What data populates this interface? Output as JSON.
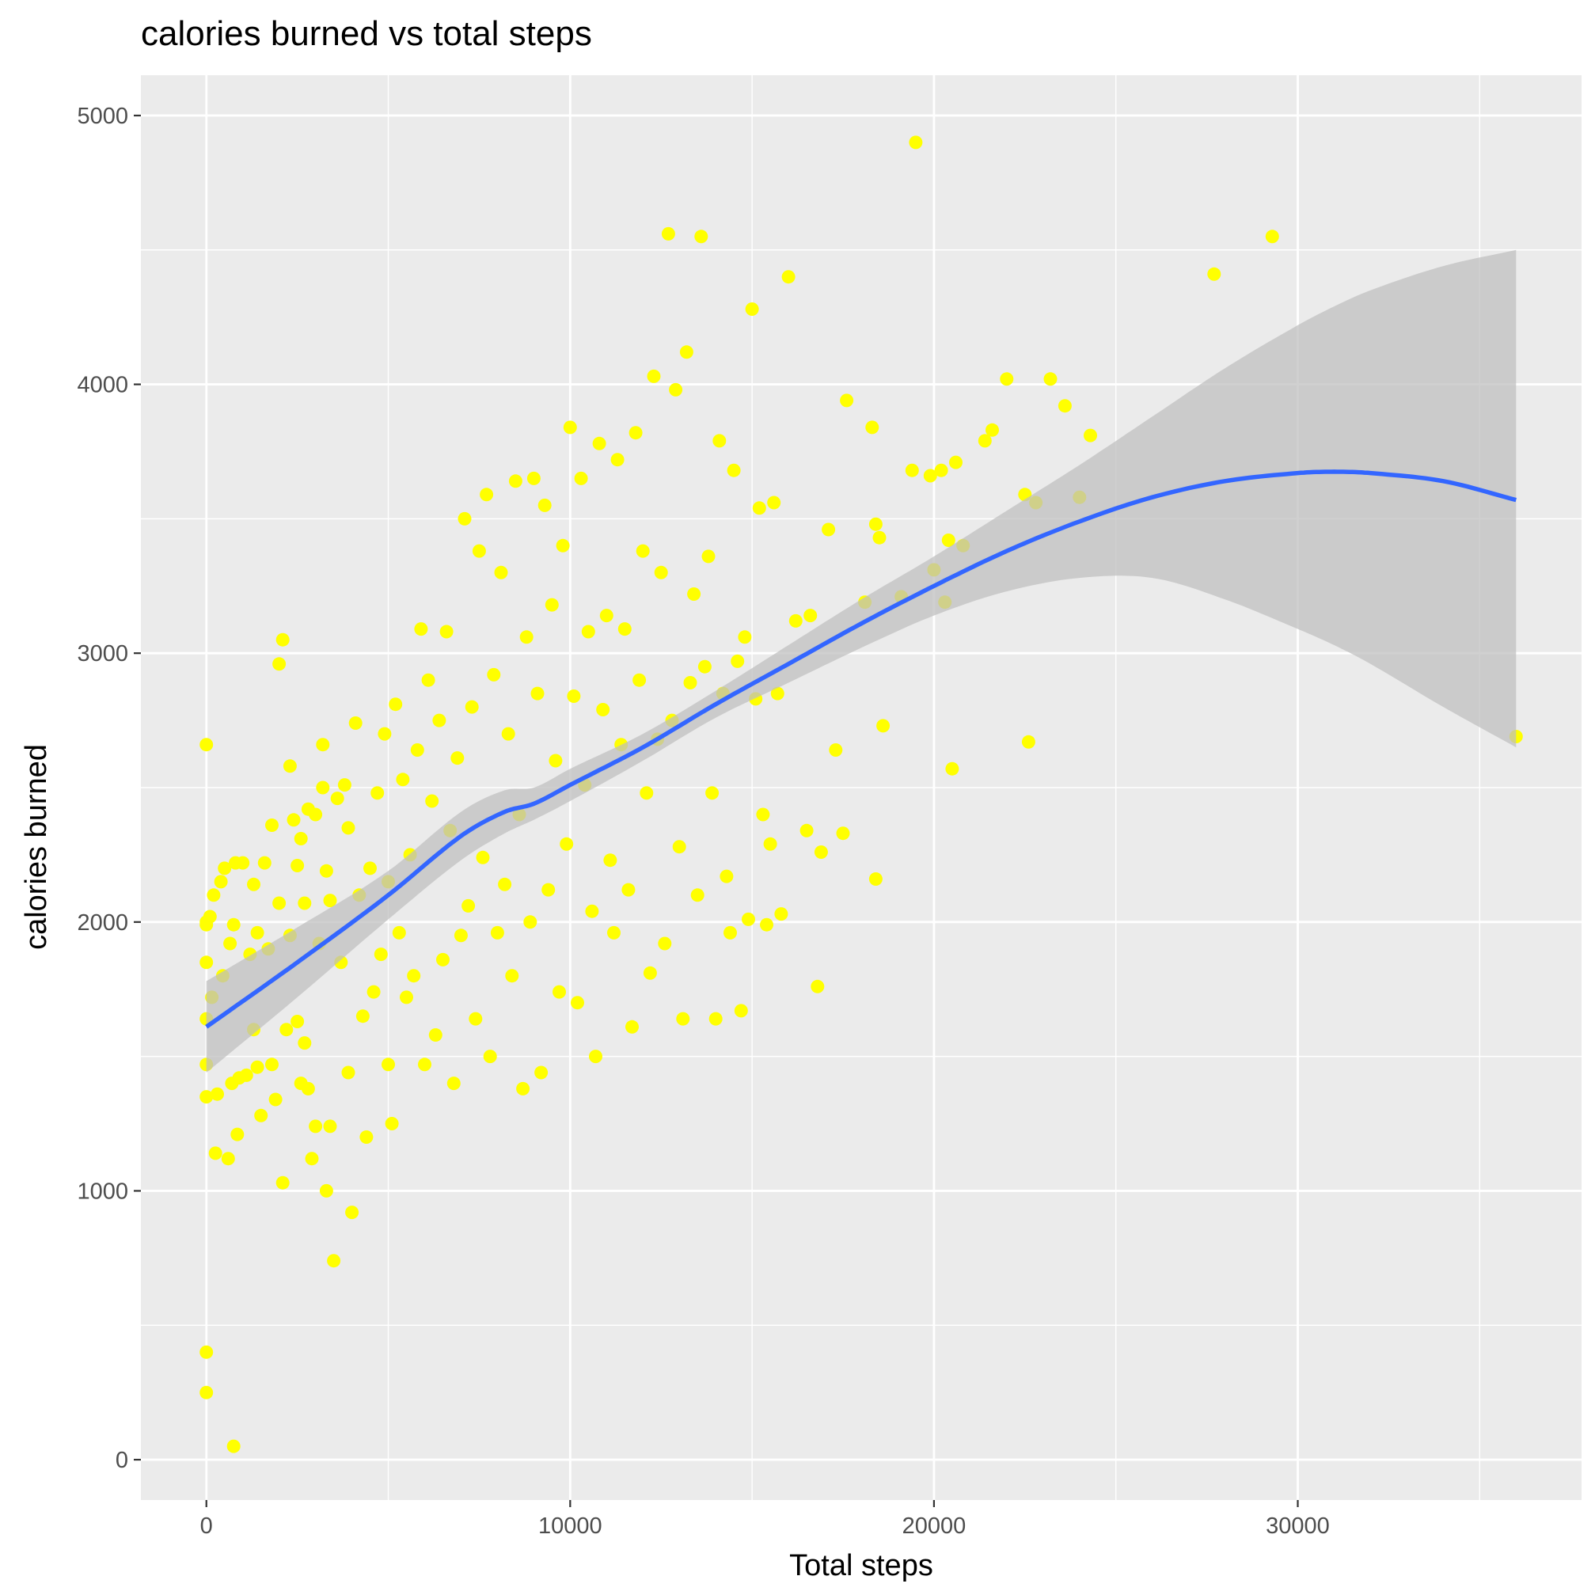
{
  "chart_data": {
    "type": "scatter",
    "title": "calories burned vs total steps",
    "xlabel": "Total steps",
    "ylabel": "calories burned",
    "xlim": [
      -1800,
      37800
    ],
    "ylim": [
      -150,
      5150
    ],
    "x_ticks": [
      0,
      10000,
      20000,
      30000
    ],
    "y_ticks": [
      0,
      1000,
      2000,
      3000,
      4000,
      5000
    ],
    "grid": true,
    "panel_color": "#ebebeb",
    "point_color": "#ffff00",
    "smooth_line_color": "#3366ff",
    "ribbon_color": "#bebebe",
    "points": [
      [
        0,
        2660
      ],
      [
        0,
        2000
      ],
      [
        0,
        1990
      ],
      [
        0,
        1850
      ],
      [
        0,
        1640
      ],
      [
        0,
        1470
      ],
      [
        0,
        1350
      ],
      [
        0,
        400
      ],
      [
        0,
        250
      ],
      [
        100,
        2020
      ],
      [
        150,
        1720
      ],
      [
        200,
        2100
      ],
      [
        250,
        1140
      ],
      [
        300,
        1360
      ],
      [
        400,
        2150
      ],
      [
        450,
        1800
      ],
      [
        500,
        2200
      ],
      [
        600,
        1120
      ],
      [
        650,
        1920
      ],
      [
        700,
        1400
      ],
      [
        750,
        1990
      ],
      [
        800,
        2220
      ],
      [
        750,
        50
      ],
      [
        850,
        1210
      ],
      [
        900,
        1420
      ],
      [
        1000,
        2220
      ],
      [
        1100,
        1430
      ],
      [
        1200,
        1880
      ],
      [
        1300,
        2140
      ],
      [
        1300,
        1600
      ],
      [
        1400,
        1960
      ],
      [
        1400,
        1460
      ],
      [
        1500,
        1280
      ],
      [
        1600,
        2220
      ],
      [
        1700,
        1900
      ],
      [
        1800,
        2360
      ],
      [
        1800,
        1470
      ],
      [
        1900,
        1340
      ],
      [
        2000,
        2070
      ],
      [
        2000,
        2960
      ],
      [
        2100,
        3050
      ],
      [
        2100,
        1030
      ],
      [
        2200,
        1600
      ],
      [
        2300,
        2580
      ],
      [
        2300,
        1950
      ],
      [
        2400,
        2380
      ],
      [
        2500,
        2210
      ],
      [
        2500,
        1630
      ],
      [
        2600,
        2310
      ],
      [
        2600,
        1400
      ],
      [
        2700,
        2070
      ],
      [
        2700,
        1550
      ],
      [
        2800,
        2420
      ],
      [
        2800,
        1380
      ],
      [
        2900,
        1120
      ],
      [
        3000,
        1240
      ],
      [
        3000,
        2400
      ],
      [
        3100,
        1920
      ],
      [
        3200,
        2660
      ],
      [
        3200,
        2500
      ],
      [
        3300,
        2190
      ],
      [
        3300,
        1000
      ],
      [
        3400,
        2080
      ],
      [
        3400,
        1240
      ],
      [
        3500,
        740
      ],
      [
        3600,
        2460
      ],
      [
        3700,
        1850
      ],
      [
        3800,
        2510
      ],
      [
        3900,
        1440
      ],
      [
        3900,
        2350
      ],
      [
        4000,
        920
      ],
      [
        4100,
        2740
      ],
      [
        4200,
        2100
      ],
      [
        4300,
        1650
      ],
      [
        4400,
        1200
      ],
      [
        4500,
        2200
      ],
      [
        4600,
        1740
      ],
      [
        4700,
        2480
      ],
      [
        4800,
        1880
      ],
      [
        4900,
        2700
      ],
      [
        5000,
        1470
      ],
      [
        5000,
        2150
      ],
      [
        5100,
        1250
      ],
      [
        5200,
        2810
      ],
      [
        5300,
        1960
      ],
      [
        5400,
        2530
      ],
      [
        5500,
        1720
      ],
      [
        5600,
        2250
      ],
      [
        5700,
        1800
      ],
      [
        5800,
        2640
      ],
      [
        5900,
        3090
      ],
      [
        6000,
        1470
      ],
      [
        6100,
        2900
      ],
      [
        6200,
        2450
      ],
      [
        6300,
        1580
      ],
      [
        6400,
        2750
      ],
      [
        6500,
        1860
      ],
      [
        6600,
        3080
      ],
      [
        6700,
        2340
      ],
      [
        6800,
        1400
      ],
      [
        6900,
        2610
      ],
      [
        7000,
        1950
      ],
      [
        7100,
        3500
      ],
      [
        7200,
        2060
      ],
      [
        7300,
        2800
      ],
      [
        7400,
        1640
      ],
      [
        7500,
        3380
      ],
      [
        7600,
        2240
      ],
      [
        7700,
        3590
      ],
      [
        7800,
        1500
      ],
      [
        7900,
        2920
      ],
      [
        8000,
        1960
      ],
      [
        8100,
        3300
      ],
      [
        8200,
        2140
      ],
      [
        8300,
        2700
      ],
      [
        8400,
        1800
      ],
      [
        8500,
        3640
      ],
      [
        8600,
        2400
      ],
      [
        8700,
        1380
      ],
      [
        8800,
        3060
      ],
      [
        8900,
        2000
      ],
      [
        9000,
        3650
      ],
      [
        9100,
        2850
      ],
      [
        9200,
        1440
      ],
      [
        9300,
        3550
      ],
      [
        9400,
        2120
      ],
      [
        9500,
        3180
      ],
      [
        9600,
        2600
      ],
      [
        9700,
        1740
      ],
      [
        9800,
        3400
      ],
      [
        9900,
        2290
      ],
      [
        10000,
        3840
      ],
      [
        10100,
        2840
      ],
      [
        10200,
        1700
      ],
      [
        10300,
        3650
      ],
      [
        10400,
        2510
      ],
      [
        10500,
        3080
      ],
      [
        10600,
        2040
      ],
      [
        10700,
        1500
      ],
      [
        10800,
        3780
      ],
      [
        10900,
        2790
      ],
      [
        11000,
        3140
      ],
      [
        11100,
        2230
      ],
      [
        11200,
        1960
      ],
      [
        11300,
        3720
      ],
      [
        11400,
        2660
      ],
      [
        11500,
        3090
      ],
      [
        11600,
        2120
      ],
      [
        11700,
        1610
      ],
      [
        11800,
        3820
      ],
      [
        11900,
        2900
      ],
      [
        12000,
        3380
      ],
      [
        12100,
        2480
      ],
      [
        12200,
        1810
      ],
      [
        12300,
        4030
      ],
      [
        12400,
        2680
      ],
      [
        12500,
        3300
      ],
      [
        12600,
        1920
      ],
      [
        12700,
        4560
      ],
      [
        12800,
        2750
      ],
      [
        12900,
        3980
      ],
      [
        13000,
        2280
      ],
      [
        13100,
        1640
      ],
      [
        13200,
        4120
      ],
      [
        13300,
        2890
      ],
      [
        13400,
        3220
      ],
      [
        13500,
        2100
      ],
      [
        13600,
        4550
      ],
      [
        13700,
        2950
      ],
      [
        13800,
        3360
      ],
      [
        13900,
        2480
      ],
      [
        14000,
        1640
      ],
      [
        14100,
        3790
      ],
      [
        14200,
        2850
      ],
      [
        14300,
        2170
      ],
      [
        14400,
        1960
      ],
      [
        14500,
        3680
      ],
      [
        14600,
        2970
      ],
      [
        14700,
        1670
      ],
      [
        14800,
        3060
      ],
      [
        14900,
        2010
      ],
      [
        15000,
        4280
      ],
      [
        15100,
        2830
      ],
      [
        15200,
        3540
      ],
      [
        15300,
        2400
      ],
      [
        15400,
        1990
      ],
      [
        15500,
        2290
      ],
      [
        15600,
        3560
      ],
      [
        15700,
        2850
      ],
      [
        15800,
        2030
      ],
      [
        16000,
        4400
      ],
      [
        16200,
        3120
      ],
      [
        16500,
        2340
      ],
      [
        16600,
        3140
      ],
      [
        16800,
        1760
      ],
      [
        16900,
        2260
      ],
      [
        17100,
        3460
      ],
      [
        17300,
        2640
      ],
      [
        17500,
        2330
      ],
      [
        17600,
        3940
      ],
      [
        18100,
        3190
      ],
      [
        18300,
        3840
      ],
      [
        18400,
        3480
      ],
      [
        18500,
        3430
      ],
      [
        18600,
        2730
      ],
      [
        18400,
        2160
      ],
      [
        19100,
        3210
      ],
      [
        19400,
        3680
      ],
      [
        19900,
        3660
      ],
      [
        20000,
        3310
      ],
      [
        20200,
        3680
      ],
      [
        20300,
        3190
      ],
      [
        20400,
        3420
      ],
      [
        20500,
        2570
      ],
      [
        20600,
        3710
      ],
      [
        20800,
        3400
      ],
      [
        21400,
        3790
      ],
      [
        21600,
        3830
      ],
      [
        22000,
        4020
      ],
      [
        22500,
        3590
      ],
      [
        22600,
        2670
      ],
      [
        22800,
        3560
      ],
      [
        23200,
        4020
      ],
      [
        23600,
        3920
      ],
      [
        24000,
        3580
      ],
      [
        24300,
        3810
      ],
      [
        19500,
        4900
      ],
      [
        27700,
        4410
      ],
      [
        29300,
        4550
      ],
      [
        36000,
        2690
      ]
    ],
    "smooth_fit": {
      "x": [
        0,
        2500,
        5000,
        7000,
        8200,
        9000,
        10000,
        12000,
        14000,
        16000,
        18000,
        20000,
        22000,
        24000,
        26000,
        28000,
        30000,
        31000,
        32000,
        34000,
        36000
      ],
      "y": [
        1610,
        1850,
        2100,
        2320,
        2410,
        2440,
        2510,
        2650,
        2810,
        2960,
        3110,
        3250,
        3380,
        3490,
        3580,
        3640,
        3670,
        3675,
        3670,
        3640,
        3570
      ],
      "lower": [
        1440,
        1720,
        2010,
        2230,
        2330,
        2380,
        2450,
        2600,
        2760,
        2890,
        3020,
        3140,
        3230,
        3280,
        3280,
        3200,
        3090,
        3030,
        2960,
        2800,
        2650
      ],
      "upper": [
        1780,
        1980,
        2190,
        2410,
        2490,
        2500,
        2570,
        2700,
        2860,
        3030,
        3200,
        3360,
        3530,
        3700,
        3880,
        4060,
        4220,
        4290,
        4350,
        4440,
        4500
      ]
    }
  }
}
